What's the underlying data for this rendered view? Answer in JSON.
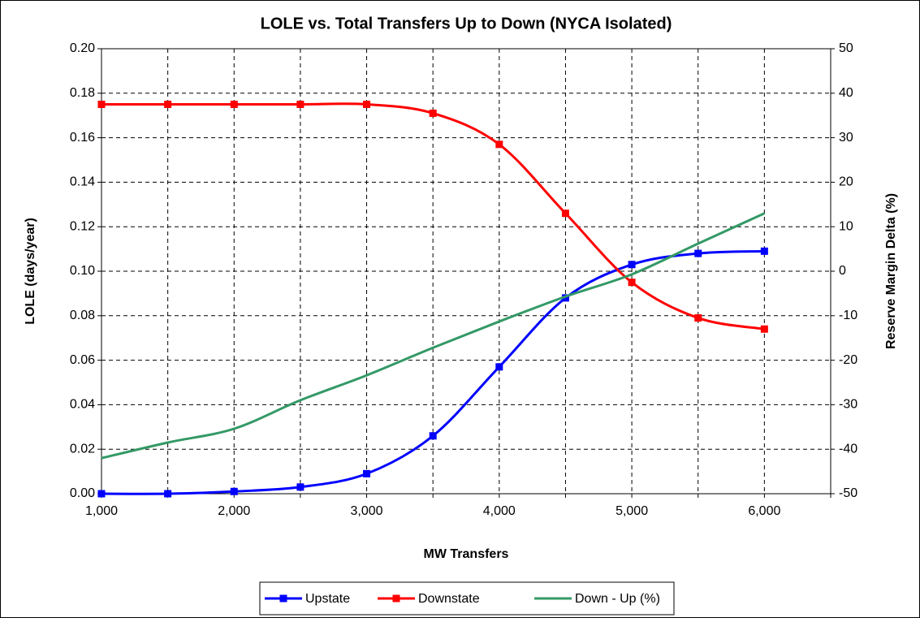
{
  "chart_data": {
    "type": "line",
    "title": "LOLE vs. Total Transfers Up to Down (NYCA Isolated)",
    "x_label": "MW Transfers",
    "y_label": "LOLE (days/year)",
    "y2_label": "Reserve Margin Delta (%)",
    "x": [
      1000,
      1500,
      2000,
      2500,
      3000,
      3500,
      4000,
      4500,
      5000,
      5500,
      6000
    ],
    "series": [
      {
        "name": "Upstate",
        "color": "#0000ff",
        "marker": "square",
        "values": [
          0.0,
          0.0,
          0.001,
          0.003,
          0.009,
          0.026,
          0.057,
          0.088,
          0.103,
          0.108,
          0.109
        ]
      },
      {
        "name": "Downstate",
        "color": "#ff0000",
        "marker": "square",
        "values": [
          0.175,
          0.175,
          0.175,
          0.175,
          0.175,
          0.171,
          0.157,
          0.126,
          0.095,
          0.079,
          0.074
        ]
      },
      {
        "name": "Down - Up (%)",
        "color": "#339966",
        "axis": "y2",
        "values": [
          -42,
          -38.5,
          -35.4,
          -29,
          -23.4,
          -17.2,
          -11.3,
          -5.7,
          -0.7,
          6.2,
          13
        ]
      }
    ],
    "xlim": [
      1000,
      6500
    ],
    "xticks": [
      {
        "value": 1000,
        "label": "1,000"
      },
      {
        "value": 2000,
        "label": "2,000"
      },
      {
        "value": 3000,
        "label": "3,000"
      },
      {
        "value": 4000,
        "label": "4,000"
      },
      {
        "value": 5000,
        "label": "5,000"
      },
      {
        "value": 6000,
        "label": "6,000"
      }
    ],
    "xminor_ticks": [
      1500,
      2500,
      3500,
      4500,
      5500,
      6500
    ],
    "ylim": [
      0,
      0.2
    ],
    "yticks": [
      {
        "value": 0,
        "label": "0.00"
      },
      {
        "value": 0.02,
        "label": "0.02"
      },
      {
        "value": 0.04,
        "label": "0.04"
      },
      {
        "value": 0.06,
        "label": "0.06"
      },
      {
        "value": 0.08,
        "label": "0.08"
      },
      {
        "value": 0.1,
        "label": "0.10"
      },
      {
        "value": 0.12,
        "label": "0.12"
      },
      {
        "value": 0.14,
        "label": "0.14"
      },
      {
        "value": 0.16,
        "label": "0.16"
      },
      {
        "value": 0.18,
        "label": "0.18"
      },
      {
        "value": 0.2,
        "label": "0.20"
      }
    ],
    "y2lim": [
      -50,
      50
    ],
    "y2ticks": [
      -50,
      -40,
      -30,
      -20,
      -10,
      0,
      10,
      20,
      30,
      40,
      50
    ],
    "grid": true,
    "legend": "bottom"
  }
}
